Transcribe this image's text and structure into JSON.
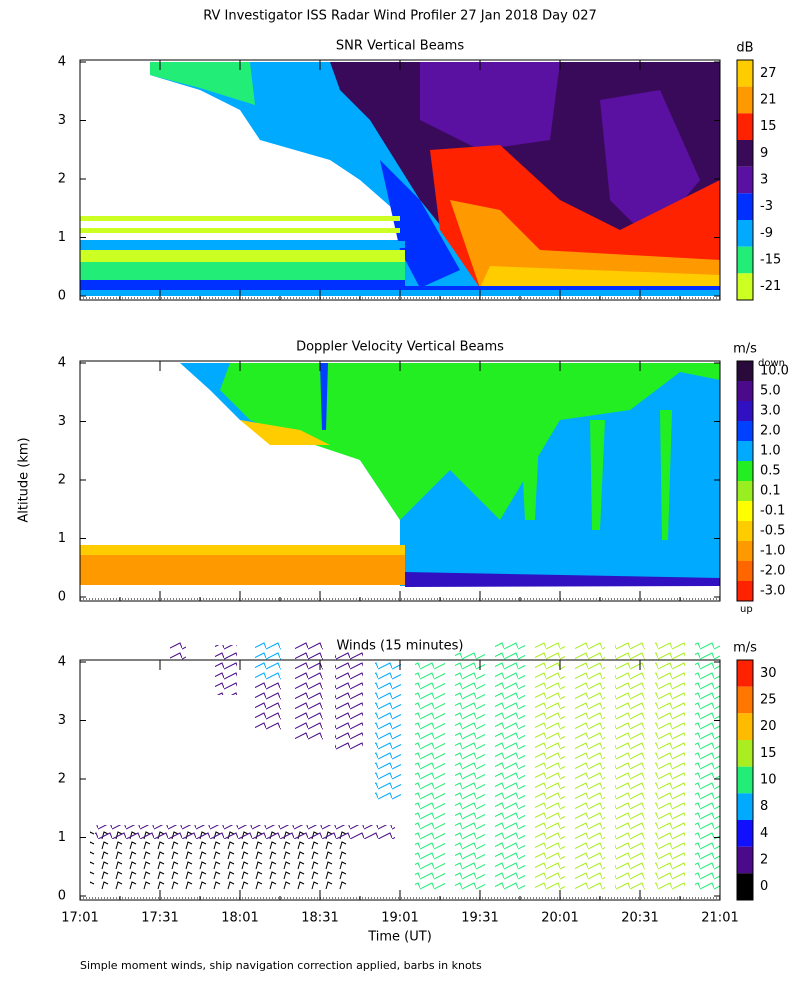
{
  "title": "RV Investigator ISS Radar Wind Profiler  27 Jan 2018 Day 027",
  "y_label": "Altitude (km)",
  "x_label": "Time (UT)",
  "footnote": "Simple moment winds, ship navigation correction applied, barbs in knots",
  "chart_data": [
    {
      "type": "heatmap",
      "title": "SNR Vertical Beams",
      "ylim": [
        0,
        4
      ],
      "yticks": [
        0,
        1,
        2,
        3,
        4
      ],
      "colorbar": {
        "unit": "dB",
        "ticks": [
          27,
          21,
          15,
          9,
          3,
          -3,
          -9,
          -15,
          -21
        ],
        "colors": [
          "#ffcc00",
          "#ff9900",
          "#ff2200",
          "#3a0a5a",
          "#5a10a0",
          "#0030ff",
          "#00aaff",
          "#22ee77",
          "#ccff22"
        ]
      }
    },
    {
      "type": "heatmap",
      "title": "Doppler Velocity Vertical Beams",
      "ylim": [
        0,
        4
      ],
      "yticks": [
        0,
        1,
        2,
        3,
        4
      ],
      "colorbar": {
        "unit": "m/s",
        "top_label": "down",
        "bottom_label": "up",
        "ticks": [
          {
            "value": 10,
            "label": "10.0"
          },
          {
            "value": 5,
            "label": "5.0"
          },
          {
            "value": 3,
            "label": "3.0"
          },
          {
            "value": 2,
            "label": "2.0"
          },
          {
            "value": 1,
            "label": "1.0"
          },
          0.5,
          0.1,
          -0.1,
          -0.5,
          {
            "value": -1,
            "label": "-1.0"
          },
          {
            "value": -2,
            "label": "-2.0"
          },
          {
            "value": -3,
            "label": "-3.0"
          }
        ],
        "colors": [
          "#2a0a3a",
          "#4a0a8a",
          "#3010c0",
          "#0040ff",
          "#00aaff",
          "#22ee22",
          "#99ee22",
          "#ffff00",
          "#ffcc00",
          "#ff9900",
          "#ff6600",
          "#ff2200"
        ]
      }
    },
    {
      "type": "barbs",
      "title": "Winds (15 minutes)",
      "ylim": [
        0,
        4
      ],
      "yticks": [
        0,
        1,
        2,
        3,
        4
      ],
      "xticks": [
        "17:01",
        "17:31",
        "18:01",
        "18:31",
        "19:01",
        "19:31",
        "20:01",
        "20:31",
        "21:01"
      ],
      "colorbar": {
        "unit": "m/s",
        "ticks": [
          30,
          25,
          20,
          15,
          10,
          8,
          4,
          2,
          0
        ],
        "colors": [
          "#ff2200",
          "#ff7700",
          "#ffbb00",
          "#aaee22",
          "#22ee77",
          "#00aaff",
          "#1010ff",
          "#4a0a8a",
          "#000000"
        ]
      }
    }
  ]
}
